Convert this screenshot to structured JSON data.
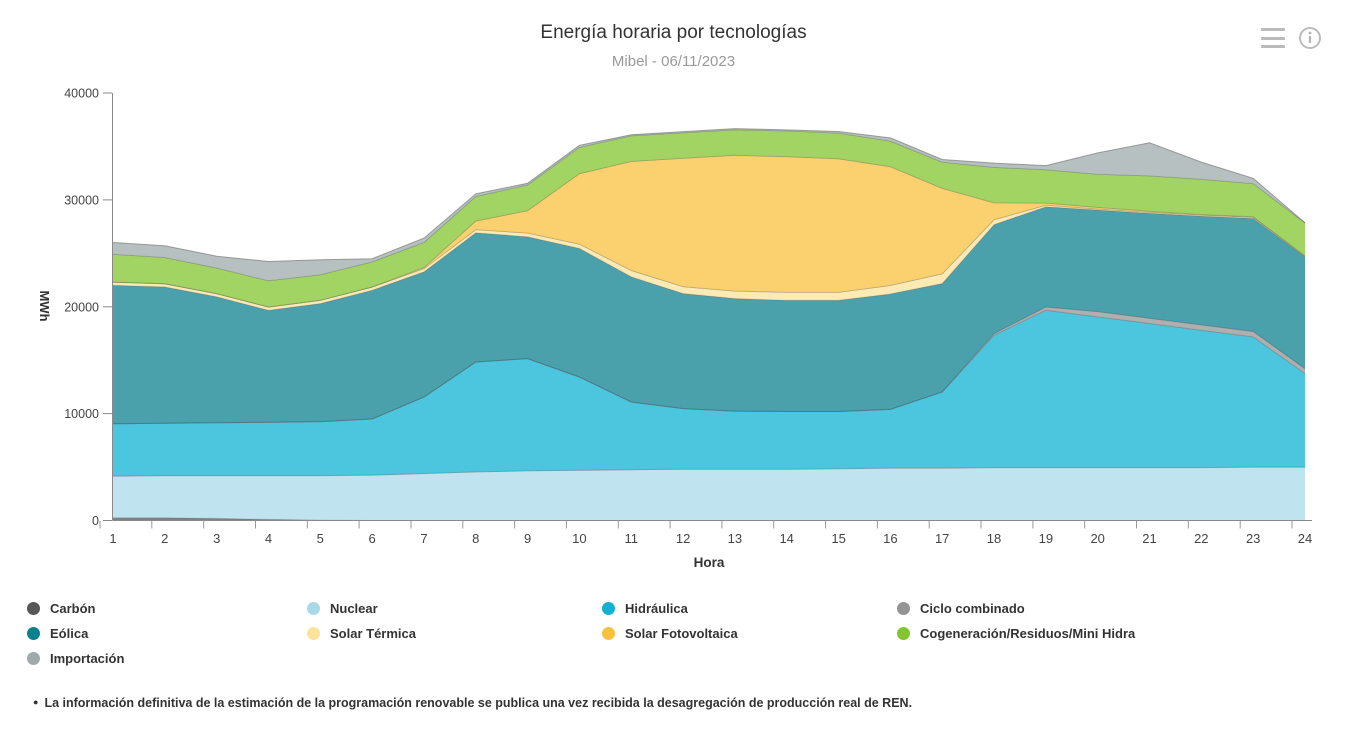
{
  "header": {
    "title": "Energía horaria por tecnologías",
    "subtitle": "Mibel - 06/11/2023"
  },
  "toolbar": {
    "menu_icon": "hamburger-menu",
    "info_icon": "info-circle"
  },
  "chart_data": {
    "type": "area",
    "stacking": "normal",
    "title": "Energía horaria por tecnologías",
    "subtitle": "Mibel - 06/11/2023",
    "xlabel": "Hora",
    "ylabel": "MWh",
    "units": "MWh",
    "x": [
      1,
      2,
      3,
      4,
      5,
      6,
      7,
      8,
      9,
      10,
      11,
      12,
      13,
      14,
      15,
      16,
      17,
      18,
      19,
      20,
      21,
      22,
      23,
      24
    ],
    "ylim": [
      0,
      40000
    ],
    "yticks": [
      0,
      10000,
      20000,
      30000,
      40000
    ],
    "grid": false,
    "legend_position": "bottom",
    "series": [
      {
        "name": "Carbón",
        "color": "#575757",
        "values": [
          250,
          250,
          200,
          100,
          50,
          0,
          0,
          0,
          0,
          0,
          0,
          0,
          0,
          0,
          0,
          0,
          0,
          0,
          0,
          0,
          0,
          0,
          0,
          0
        ]
      },
      {
        "name": "Nuclear",
        "color": "#a9d9e9",
        "values": [
          3900,
          3950,
          4000,
          4100,
          4150,
          4250,
          4400,
          4550,
          4650,
          4700,
          4750,
          4800,
          4800,
          4800,
          4850,
          4900,
          4900,
          4950,
          4950,
          4950,
          4950,
          4950,
          5000,
          5000
        ]
      },
      {
        "name": "Hidráulica",
        "color": "#10b1d3",
        "values": [
          4900,
          4900,
          4950,
          5000,
          5050,
          5250,
          7150,
          10280,
          10500,
          8730,
          6340,
          5670,
          5440,
          5400,
          5350,
          5500,
          7120,
          12390,
          14730,
          14100,
          13480,
          12850,
          12180,
          8750
        ]
      },
      {
        "name": "Ciclo combinado",
        "color": "#949494",
        "values": [
          0,
          0,
          0,
          0,
          0,
          0,
          0,
          0,
          0,
          0,
          0,
          0,
          0,
          0,
          0,
          0,
          0,
          150,
          300,
          500,
          500,
          500,
          500,
          450
        ]
      },
      {
        "name": "Eólica",
        "color": "#0d808f",
        "values": [
          12960,
          12760,
          11780,
          10480,
          11050,
          12050,
          11720,
          12090,
          11400,
          12030,
          11710,
          10770,
          10530,
          10400,
          10400,
          10800,
          10160,
          10200,
          9380,
          9500,
          9810,
          10180,
          10590,
          10470
        ]
      },
      {
        "name": "Solar Térmica",
        "color": "#fbe39c",
        "values": [
          300,
          300,
          300,
          300,
          300,
          300,
          300,
          300,
          350,
          400,
          600,
          650,
          700,
          750,
          750,
          800,
          900,
          450,
          150,
          100,
          100,
          100,
          100,
          80
        ]
      },
      {
        "name": "Solar Fotovoltaica",
        "color": "#f8c13e",
        "values": [
          0,
          0,
          0,
          0,
          0,
          0,
          100,
          800,
          2100,
          6600,
          10200,
          12000,
          12700,
          12700,
          12500,
          11100,
          8000,
          1600,
          200,
          150,
          100,
          50,
          50,
          0
        ]
      },
      {
        "name": "Cogeneración/Residuos/Mini Hidra",
        "color": "#83c530",
        "values": [
          2600,
          2450,
          2400,
          2450,
          2400,
          2350,
          2350,
          2300,
          2400,
          2450,
          2400,
          2400,
          2400,
          2400,
          2400,
          2400,
          2450,
          3300,
          3100,
          3100,
          3300,
          3300,
          3100,
          3100
        ]
      },
      {
        "name": "Importación",
        "color": "#9fabab",
        "values": [
          1100,
          1100,
          1100,
          1800,
          1400,
          300,
          400,
          250,
          150,
          200,
          100,
          100,
          100,
          100,
          150,
          300,
          250,
          400,
          400,
          2000,
          3100,
          1600,
          500,
          0
        ]
      }
    ],
    "legend_order": [
      "Carbón",
      "Nuclear",
      "Hidráulica",
      "Ciclo combinado",
      "Eólica",
      "Solar Térmica",
      "Solar Fotovoltaica",
      "Cogeneración/Residuos/Mini Hidra",
      "Importación"
    ]
  },
  "footnote": {
    "bullet": "●",
    "text": "La información definitiva de la estimación de la programación renovable se publica una vez recibida la desagregación de producción real de REN."
  }
}
